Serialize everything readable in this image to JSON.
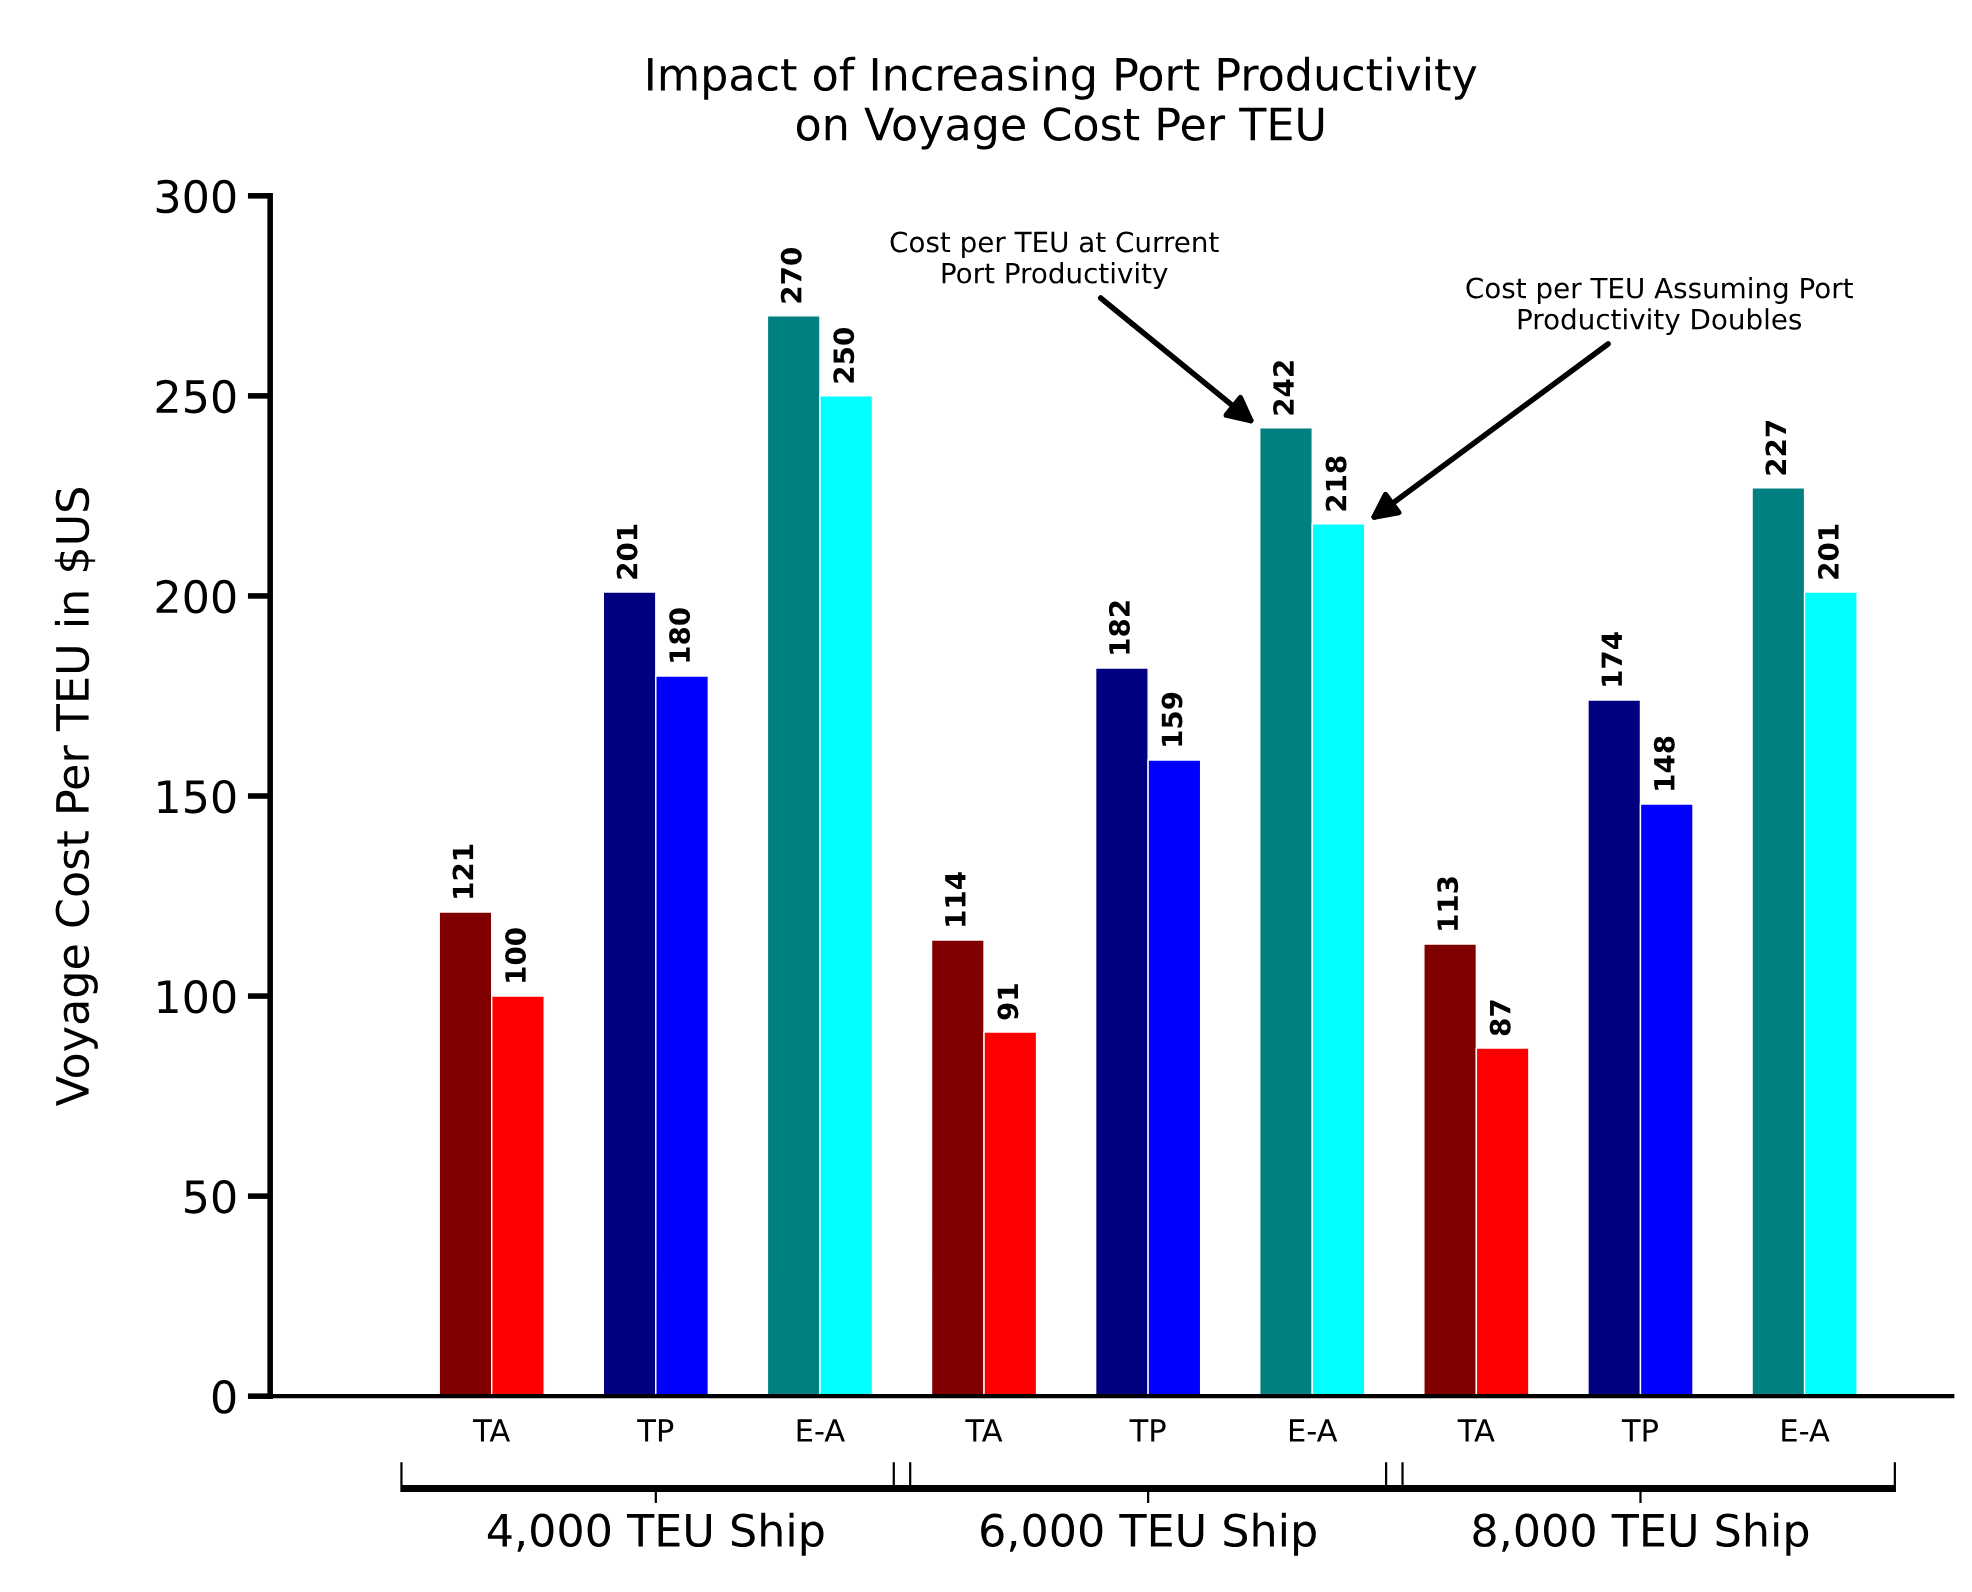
{
  "chart_data": {
    "type": "bar",
    "title": "Impact of Increasing Port Productivity\non Voyage Cost Per TEU",
    "ylabel": "Voyage Cost Per TEU in $US",
    "categories": [
      "TA",
      "TP",
      "E-A",
      "TA",
      "TP",
      "E-A",
      "TA",
      "TP",
      "E-A"
    ],
    "series": [
      {
        "name": "Cost per TEU at Current\nPort Productivity",
        "colors": [
          "#800000",
          "#000080",
          "#008080",
          "#800000",
          "#000080",
          "#008080",
          "#800000",
          "#000080",
          "#008080"
        ],
        "values": [
          121,
          201,
          270,
          114,
          182,
          242,
          113,
          174,
          227
        ]
      },
      {
        "name": "Cost per TEU Assuming Port\nProductivity Doubles",
        "colors": [
          "#ff0000",
          "#0000ff",
          "#00ffff",
          "#ff0000",
          "#0000ff",
          "#00ffff",
          "#ff0000",
          "#0000ff",
          "#00ffff"
        ],
        "values": [
          100,
          180,
          250,
          91,
          159,
          218,
          87,
          148,
          201
        ]
      }
    ],
    "ylim": [
      0,
      300
    ],
    "yticks": [
      0,
      50,
      100,
      150,
      200,
      250,
      300
    ],
    "grid": false,
    "data_labels": true,
    "annotations": [
      "4,000 TEU Ship",
      "6,000 TEU Ship",
      "8,000 TEU Ship"
    ]
  }
}
